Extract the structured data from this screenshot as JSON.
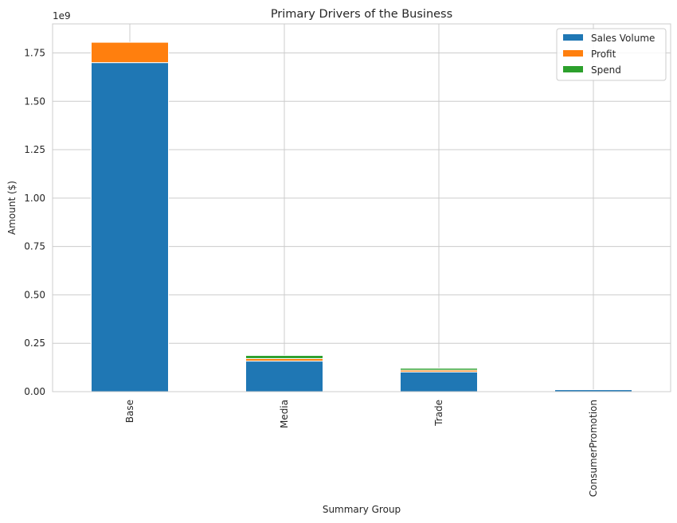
{
  "chart_data": {
    "type": "bar",
    "stacked": true,
    "title": "Primary Drivers of the Business",
    "xlabel": "Summary Group",
    "ylabel": "Amount ($)",
    "offset_text": "1e9",
    "categories": [
      "Base",
      "Media",
      "Trade",
      "ConsumerPromotion"
    ],
    "series": [
      {
        "name": "Sales Volume",
        "color": "#1f77b4",
        "values": [
          1700000000,
          158000000,
          102000000,
          10000000
        ]
      },
      {
        "name": "Profit",
        "color": "#ff7f0e",
        "values": [
          105000000,
          13000000,
          9000000,
          0
        ]
      },
      {
        "name": "Spend",
        "color": "#2ca02c",
        "values": [
          0,
          16000000,
          10000000,
          0
        ]
      }
    ],
    "ylim": [
      0,
      1900000000
    ],
    "yticks": [
      0,
      250000000,
      500000000,
      750000000,
      1000000000,
      1250000000,
      1500000000,
      1750000000
    ],
    "ytick_labels": [
      "0.00",
      "0.25",
      "0.50",
      "0.75",
      "1.00",
      "1.25",
      "1.50",
      "1.75"
    ],
    "grid": true,
    "legend_position": "top-right"
  }
}
